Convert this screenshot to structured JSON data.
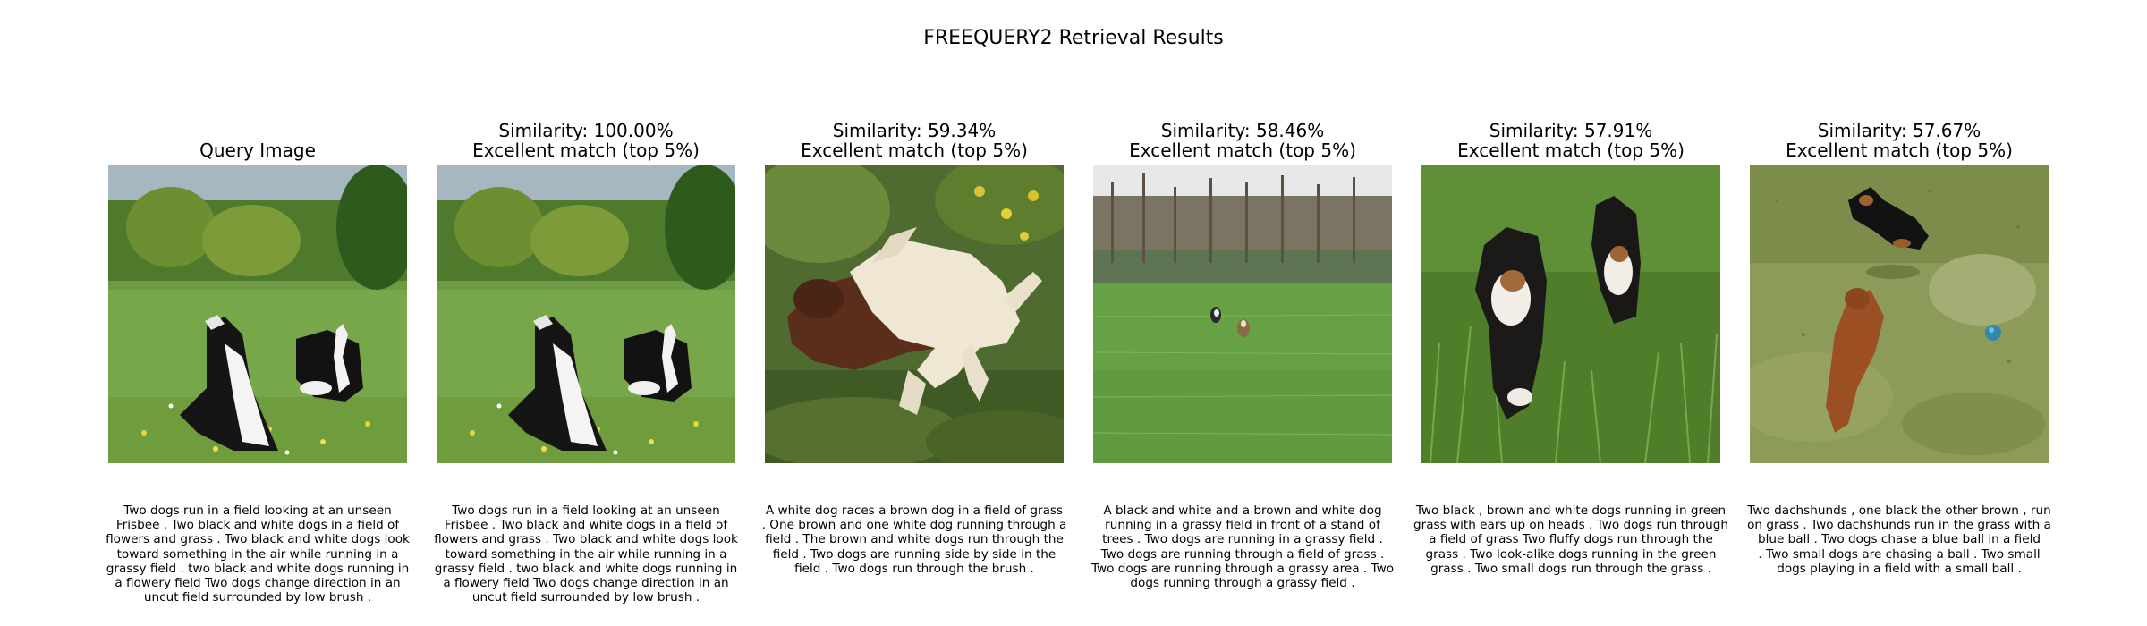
{
  "figure": {
    "title": "FREEQUERY2 Retrieval Results"
  },
  "panels": [
    {
      "title_lines": [
        "Query Image"
      ],
      "image": "two black-and-white border collies running in a flowery field",
      "caption": "Two dogs run in a field looking at an unseen\nFrisbee . Two black and white dogs in a field of\nflowers and grass . Two black and white dogs look\ntoward something in the air while running in a\ngrassy field . two black and white dogs running in\na flowery field Two dogs change direction in an\nuncut field surrounded by low brush ."
    },
    {
      "title_lines": [
        "Similarity: 100.00%",
        "Excellent match (top 5%)"
      ],
      "image": "two black-and-white border collies running in a flowery field",
      "caption": "Two dogs run in a field looking at an unseen\nFrisbee . Two black and white dogs in a field of\nflowers and grass . Two black and white dogs look\ntoward something in the air while running in a\ngrassy field . two black and white dogs running in\na flowery field Two dogs change direction in an\nuncut field surrounded by low brush ."
    },
    {
      "title_lines": [
        "Similarity: 59.34%",
        "Excellent match (top 5%)"
      ],
      "image": "a white dog racing a brown dog through green brush",
      "caption": "A white dog races a brown dog in a field of grass\n. One brown and one white dog running through a\nfield . The brown and white dogs run through the\nfield . Two dogs are running side by side in the\nfield . Two dogs run through the brush ."
    },
    {
      "title_lines": [
        "Similarity: 58.46%",
        "Excellent match (top 5%)"
      ],
      "image": "two small dogs far away in a wide green field before a stand of trees",
      "caption": "A black and white and a brown and white dog\nrunning in a grassy field in front of a stand of\ntrees . Two dogs are running in a grassy field .\nTwo dogs are running through a field of grass .\nTwo dogs are running through a grassy area . Two\ndogs running through a grassy field ."
    },
    {
      "title_lines": [
        "Similarity: 57.91%",
        "Excellent match (top 5%)"
      ],
      "image": "two fluffy black, brown and white dogs running in tall green grass",
      "caption": "Two black , brown and white dogs running in green\ngrass with ears up on heads . Two dogs run through\na field of grass Two fluffy dogs run through the\ngrass . Two look-alike dogs running in the green\ngrass . Two small dogs run through the grass ."
    },
    {
      "title_lines": [
        "Similarity: 57.67%",
        "Excellent match (top 5%)"
      ],
      "image": "two dachshunds, one black one brown, running on grass near a blue ball",
      "caption": "Two dachshunds , one black the other brown , run\non grass . Two dachshunds run in the grass with a\nblue ball . Two dogs chase a blue ball in a field\n. Two small dogs are chasing a ball . Two small\ndogs playing in a field with a small ball ."
    }
  ]
}
